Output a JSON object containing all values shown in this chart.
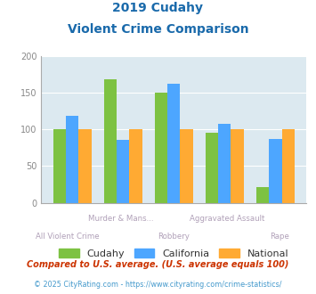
{
  "title_line1": "2019 Cudahy",
  "title_line2": "Violent Crime Comparison",
  "categories": [
    "All Violent Crime",
    "Murder & Mans...",
    "Robbery",
    "Aggravated Assault",
    "Rape"
  ],
  "cudahy": [
    100,
    168,
    150,
    95,
    22
  ],
  "california": [
    118,
    86,
    162,
    108,
    87
  ],
  "national": [
    100,
    100,
    100,
    100,
    100
  ],
  "color_cudahy": "#7dc242",
  "color_california": "#4da6ff",
  "color_national": "#ffaa33",
  "ylim": [
    0,
    200
  ],
  "yticks": [
    0,
    50,
    100,
    150,
    200
  ],
  "bg_color": "#dce9f0",
  "title_color": "#1a6aab",
  "xlabel_color": "#b0a0b8",
  "legend_color": "#333333",
  "footnote1": "Compared to U.S. average. (U.S. average equals 100)",
  "footnote2": "© 2025 CityRating.com - https://www.cityrating.com/crime-statistics/",
  "footnote1_color": "#cc3300",
  "footnote2_color": "#4499cc",
  "top_labels": [
    "",
    "Murder & Mans...",
    "",
    "Aggravated Assault",
    ""
  ],
  "bottom_labels": [
    "All Violent Crime",
    "",
    "Robbery",
    "",
    "Rape"
  ]
}
